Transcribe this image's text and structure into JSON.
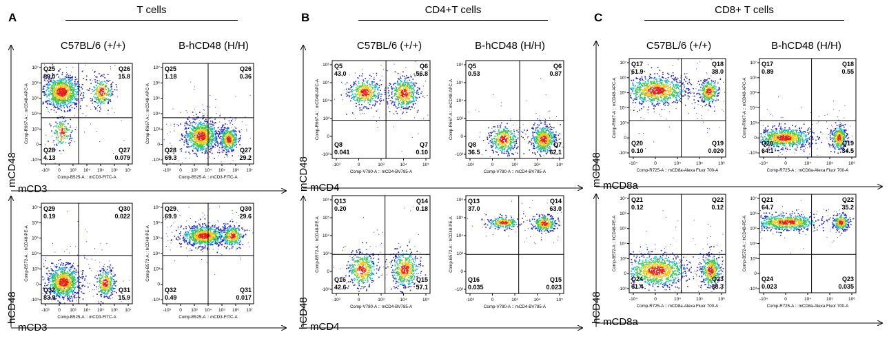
{
  "figure": {
    "panels": [
      {
        "letter": "A",
        "title": "T cells",
        "groups": [
          "C57BL/6 (+/+)",
          "B-hCD48 (H/H)"
        ],
        "x_marker": "mCD3",
        "y_markers": [
          "mCD48",
          "hCD48"
        ]
      },
      {
        "letter": "B",
        "title": "CD4+T cells",
        "groups": [
          "C57BL/6 (+/+)",
          "B-hCD48 (H/H)"
        ],
        "x_marker": "mCD4",
        "y_markers": [
          "mCD48",
          "hCD48"
        ]
      },
      {
        "letter": "C",
        "title": "CD8+ T cells",
        "groups": [
          "C57BL/6 (+/+)",
          "B-hCD48 (H/H)"
        ],
        "x_marker": "mCD8a",
        "y_markers": [
          "mCD48",
          "hCD48"
        ]
      }
    ]
  },
  "chart_data": [
    {
      "type": "scatter",
      "panel": "A",
      "row": "top",
      "group": "C57BL/6 (+/+)",
      "xlabel": "Comp-B525-A :: mCD3-FITC-A",
      "ylabel": "Comp-R667-A :: mCD48-APC-A",
      "quadrants": [
        {
          "id": "Q25",
          "value": "80.0"
        },
        {
          "id": "Q26",
          "value": "15.8"
        },
        {
          "id": "Q28",
          "value": "4.13"
        },
        {
          "id": "Q27",
          "value": "0.079"
        }
      ],
      "xticks": [
        "-10³",
        "0",
        "10³",
        "10⁴",
        "10⁵",
        "10⁶",
        "10⁷"
      ],
      "yticks": [
        "10⁷",
        "10⁶",
        "10⁵",
        "10⁴",
        "10³",
        "0",
        "-10³"
      ]
    },
    {
      "type": "scatter",
      "panel": "A",
      "row": "top",
      "group": "B-hCD48 (H/H)",
      "xlabel": "Comp-B525-A :: mCD3-FITC-A",
      "ylabel": "Comp-R667-A :: mCD48-APC-A",
      "quadrants": [
        {
          "id": "Q25",
          "value": "1.18"
        },
        {
          "id": "Q26",
          "value": "0.36"
        },
        {
          "id": "Q28",
          "value": "69.3"
        },
        {
          "id": "Q27",
          "value": "29.2"
        }
      ],
      "xticks": [
        "-10³",
        "0",
        "10³",
        "10⁴",
        "10⁵",
        "10⁶",
        "10⁷"
      ],
      "yticks": [
        "10⁷",
        "10⁶",
        "10⁵",
        "10⁴",
        "10³",
        "0",
        "-10³"
      ]
    },
    {
      "type": "scatter",
      "panel": "A",
      "row": "bottom",
      "group": "C57BL/6 (+/+)",
      "xlabel": "Comp-B525-A :: mCD3-FITC-A",
      "ylabel": "Comp-B572-A :: hCD48-PE-A",
      "quadrants": [
        {
          "id": "Q29",
          "value": "0.19"
        },
        {
          "id": "Q30",
          "value": "0.022"
        },
        {
          "id": "Q32",
          "value": "83.9"
        },
        {
          "id": "Q31",
          "value": "15.9"
        }
      ],
      "xticks": [
        "-10³",
        "0",
        "10³",
        "10⁴",
        "10⁵",
        "10⁶",
        "10⁷"
      ],
      "yticks": [
        "10⁷",
        "10⁶",
        "10⁵",
        "10⁴",
        "10³",
        "0",
        "-10³"
      ]
    },
    {
      "type": "scatter",
      "panel": "A",
      "row": "bottom",
      "group": "B-hCD48 (H/H)",
      "xlabel": "Comp-B525-A :: mCD3-FITC-A",
      "ylabel": "Comp-B572-A :: hCD48-PE-A",
      "quadrants": [
        {
          "id": "Q29",
          "value": "69.9"
        },
        {
          "id": "Q30",
          "value": "29.6"
        },
        {
          "id": "Q32",
          "value": "0.49"
        },
        {
          "id": "Q31",
          "value": "0.017"
        }
      ],
      "xticks": [
        "-10³",
        "0",
        "10³",
        "10⁴",
        "10⁵",
        "10⁶",
        "10⁷"
      ],
      "yticks": [
        "10⁷",
        "10⁶",
        "10⁵",
        "10⁴",
        "10³",
        "0",
        "-10³"
      ]
    },
    {
      "type": "scatter",
      "panel": "B",
      "row": "top",
      "group": "C57BL/6 (+/+)",
      "xlabel": "Comp-V780-A :: mCD4-BV785-A",
      "ylabel": "Comp-R667-A :: mCD48-APC-A",
      "quadrants": [
        {
          "id": "Q5",
          "value": "43.0"
        },
        {
          "id": "Q6",
          "value": "56.8"
        },
        {
          "id": "Q8",
          "value": "0.041"
        },
        {
          "id": "Q7",
          "value": "0.10"
        }
      ],
      "xticks": [
        "-10³",
        "0",
        "10³",
        "10⁴",
        "10⁵"
      ],
      "yticks": [
        "10⁶",
        "10⁵",
        "10⁴",
        "10³",
        "0",
        "-10³"
      ]
    },
    {
      "type": "scatter",
      "panel": "B",
      "row": "top",
      "group": "B-hCD48 (H/H)",
      "xlabel": "Comp-V780-A :: mCD4-BV785-A",
      "ylabel": "Comp-R667-A :: mCD48-APC-A",
      "quadrants": [
        {
          "id": "Q5",
          "value": "0.53"
        },
        {
          "id": "Q6",
          "value": "0.87"
        },
        {
          "id": "Q8",
          "value": "36.5"
        },
        {
          "id": "Q7",
          "value": "62.1"
        }
      ],
      "xticks": [
        "-10³",
        "0",
        "10³",
        "10⁴",
        "10⁵"
      ],
      "yticks": [
        "10⁶",
        "10⁵",
        "10⁴",
        "10³",
        "0",
        "-10³"
      ]
    },
    {
      "type": "scatter",
      "panel": "B",
      "row": "bottom",
      "group": "C57BL/6 (+/+)",
      "xlabel": "Comp-V780-A :: mCD4-BV785-A",
      "ylabel": "Comp-B572-A :: hCD48-PE-A",
      "quadrants": [
        {
          "id": "Q13",
          "value": "0.20"
        },
        {
          "id": "Q14",
          "value": "0.18"
        },
        {
          "id": "Q16",
          "value": "42.6"
        },
        {
          "id": "Q15",
          "value": "57.1"
        }
      ],
      "xticks": [
        "-10³",
        "0",
        "10³",
        "10⁴",
        "10⁵"
      ],
      "yticks": [
        "10⁶",
        "10⁵",
        "10⁴",
        "10³",
        "0",
        "-10³"
      ]
    },
    {
      "type": "scatter",
      "panel": "B",
      "row": "bottom",
      "group": "B-hCD48 (H/H)",
      "xlabel": "Comp-V780-A :: mCD4-BV785-A",
      "ylabel": "Comp-B572-A :: hCD48-PE-A",
      "quadrants": [
        {
          "id": "Q13",
          "value": "37.0"
        },
        {
          "id": "Q14",
          "value": "63.0"
        },
        {
          "id": "Q16",
          "value": "0.035"
        },
        {
          "id": "Q15",
          "value": "0.023"
        }
      ],
      "xticks": [
        "-10³",
        "0",
        "10³",
        "10⁴",
        "10⁵"
      ],
      "yticks": [
        "10⁶",
        "10⁵",
        "10⁴",
        "10³",
        "0",
        "-10³"
      ]
    },
    {
      "type": "scatter",
      "panel": "C",
      "row": "top",
      "group": "C57BL/6 (+/+)",
      "xlabel": "Comp-R725-A :: mCD8a-Alexa Fluor 700-A",
      "ylabel": "Comp-R667-A :: mCD48-APC-A",
      "quadrants": [
        {
          "id": "Q17",
          "value": "61.9"
        },
        {
          "id": "Q18",
          "value": "38.0"
        },
        {
          "id": "Q20",
          "value": "0.10"
        },
        {
          "id": "Q19",
          "value": "0.020"
        }
      ],
      "xticks": [
        "-10⁴",
        "0",
        "10⁴",
        "10⁵",
        "10⁶"
      ],
      "yticks": [
        "10⁷",
        "10⁶",
        "10⁵",
        "10⁴",
        "10³",
        "0",
        "-10³"
      ]
    },
    {
      "type": "scatter",
      "panel": "C",
      "row": "top",
      "group": "B-hCD48 (H/H)",
      "xlabel": "Comp-R725-A :: mCD8a-Alexa Fluor 700-A",
      "ylabel": "Comp-R667-A :: mCD48-APC-A",
      "quadrants": [
        {
          "id": "Q17",
          "value": "0.89"
        },
        {
          "id": "Q18",
          "value": "0.55"
        },
        {
          "id": "Q20",
          "value": "64.1"
        },
        {
          "id": "Q19",
          "value": "34.5"
        }
      ],
      "xticks": [
        "-10⁴",
        "0",
        "10⁴",
        "10⁵",
        "10⁶"
      ],
      "yticks": [
        "10⁷",
        "10⁶",
        "10⁵",
        "10⁴",
        "10³",
        "0",
        "-10³"
      ]
    },
    {
      "type": "scatter",
      "panel": "C",
      "row": "bottom",
      "group": "C57BL/6 (+/+)",
      "xlabel": "Comp-R725-A :: mCD8a-Alexa Fluor 700-A",
      "ylabel": "Comp-B572-A :: hCD48-PE-A",
      "quadrants": [
        {
          "id": "Q21",
          "value": "0.12"
        },
        {
          "id": "Q22",
          "value": "0.12"
        },
        {
          "id": "Q24",
          "value": "61.4"
        },
        {
          "id": "Q23",
          "value": "38.3"
        }
      ],
      "xticks": [
        "-10⁴",
        "0",
        "10⁴",
        "10⁵",
        "10⁶"
      ],
      "yticks": [
        "10⁷",
        "10⁶",
        "10⁵",
        "10⁴",
        "10³",
        "0",
        "-10³"
      ]
    },
    {
      "type": "scatter",
      "panel": "C",
      "row": "bottom",
      "group": "B-hCD48 (H/H)",
      "xlabel": "Comp-R725-A :: mCD8a-Alexa Fluor 700-A",
      "ylabel": "Comp-B572-A :: hCD48-PE-A",
      "quadrants": [
        {
          "id": "Q21",
          "value": "64.7"
        },
        {
          "id": "Q22",
          "value": "35.2"
        },
        {
          "id": "Q24",
          "value": "0.023"
        },
        {
          "id": "Q23",
          "value": "0.035"
        }
      ],
      "xticks": [
        "-10⁴",
        "0",
        "10⁴",
        "10⁵",
        "10⁶"
      ],
      "yticks": [
        "10⁷",
        "10⁶",
        "10⁵",
        "10⁴",
        "10³",
        "0",
        "-10³"
      ]
    }
  ]
}
